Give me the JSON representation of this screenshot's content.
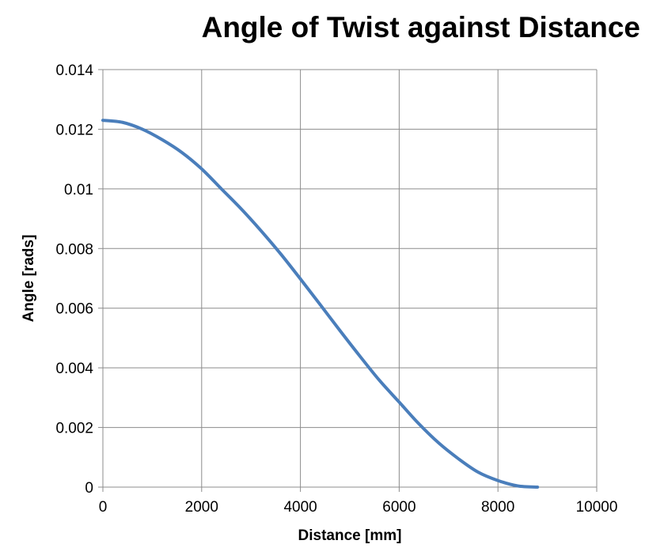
{
  "chart_data": {
    "type": "line",
    "title": "Angle of Twist against Distance",
    "xlabel": "Distance [mm]",
    "ylabel": "Angle [rads]",
    "xlim": [
      0,
      10000
    ],
    "ylim": [
      0,
      0.014
    ],
    "x_ticks": [
      "0",
      "2000",
      "4000",
      "6000",
      "8000",
      "10000"
    ],
    "y_ticks": [
      "0",
      "0.002",
      "0.004",
      "0.006",
      "0.008",
      "0.01",
      "0.012",
      "0.014"
    ],
    "grid": true,
    "legend": "none",
    "series": [
      {
        "color": "#4a7ebb",
        "x": [
          0,
          400,
          800,
          1200,
          1600,
          2000,
          2400,
          2800,
          3200,
          3600,
          4000,
          4400,
          4800,
          5200,
          5600,
          6000,
          6400,
          6800,
          7200,
          7600,
          8000,
          8400,
          8800
        ],
        "y": [
          0.0123,
          0.01223,
          0.012,
          0.01165,
          0.01122,
          0.01067,
          0.01,
          0.00933,
          0.0086,
          0.00782,
          0.00698,
          0.00612,
          0.00525,
          0.0044,
          0.00358,
          0.00285,
          0.00212,
          0.00148,
          0.00095,
          0.0005,
          0.00022,
          4e-05,
          0.0
        ]
      }
    ]
  }
}
